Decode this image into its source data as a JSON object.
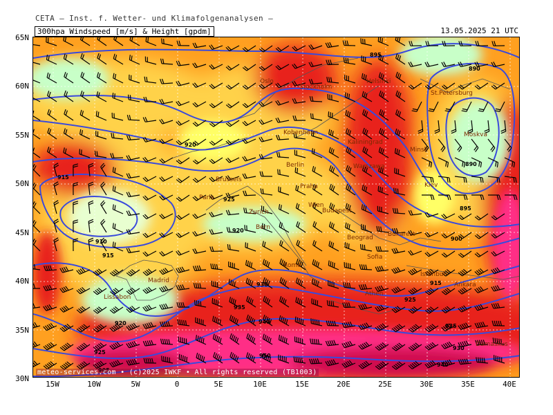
{
  "header": {
    "organization": "CETA — Inst. f. Wetter- und Klimafolgenanalysen —",
    "product": "300hpa Windspeed [m/s] & Height [gpdm]",
    "valid_time": "13.05.2025 21 UTC"
  },
  "footer": "meteo-services.com • (c)2025 IWKF • All rights reserved (TB1003)",
  "map": {
    "lat_labels": [
      "65N",
      "60N",
      "55N",
      "50N",
      "45N",
      "40N",
      "35N",
      "30N"
    ],
    "lon_labels": [
      "15W",
      "10W",
      "5W",
      "0",
      "5E",
      "10E",
      "15E",
      "20E",
      "25E",
      "30E",
      "35E",
      "40E"
    ],
    "cities": [
      "Oslo",
      "Stockholm",
      "Helsinki",
      "St.Petersburg",
      "Kobenhavn",
      "Kaliningrad",
      "Minsk",
      "Moskva",
      "Berlin",
      "Warszawa",
      "Brussels",
      "Paris",
      "Praha",
      "Kiev",
      "Zurich",
      "Wien",
      "Budapest",
      "Bern",
      "Beograd",
      "Bukarest",
      "Rome",
      "Sofia",
      "Madrid",
      "Lissabon",
      "Istanbul",
      "Ankara",
      "Athen",
      "Damaskus"
    ],
    "height_labels": [
      "895",
      "890",
      "910",
      "915",
      "920",
      "925",
      "930",
      "935",
      "940",
      "950",
      "900",
      "905"
    ],
    "colors": {
      "calm": "#c8ffc8",
      "light": "#ffff66",
      "yellow": "#ffd24a",
      "orange": "#ffa020",
      "darkorange": "#ff6a10",
      "red": "#e8201c",
      "crimson": "#d01050",
      "magenta": "#ff2e86",
      "contour": "#3a4adc",
      "barb": "#000000"
    }
  }
}
